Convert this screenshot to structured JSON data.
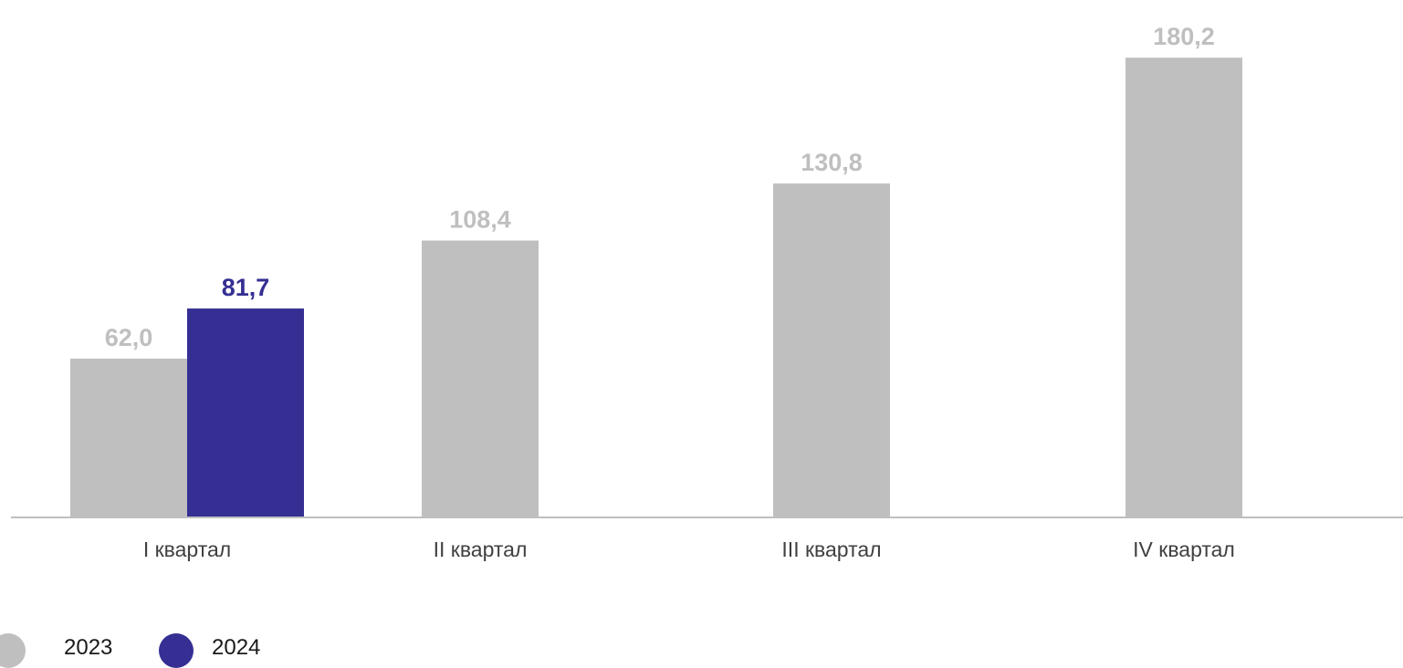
{
  "chart_data": {
    "type": "bar",
    "categories": [
      "I квартал",
      "II квартал",
      "III квартал",
      "IV квартал"
    ],
    "series": [
      {
        "name": "2023",
        "values": [
          62.0,
          108.4,
          130.8,
          180.2
        ],
        "labels": [
          "62,0",
          "108,4",
          "130,8",
          "180,2"
        ],
        "color": "#bfbfbf"
      },
      {
        "name": "2024",
        "values": [
          81.7,
          null,
          null,
          null
        ],
        "labels": [
          "81,7",
          null,
          null,
          null
        ],
        "color": "#352f93"
      }
    ],
    "title": "",
    "xlabel": "",
    "ylabel": "",
    "ylim": [
      0,
      200
    ],
    "grid": false,
    "legend_position": "bottom-left"
  },
  "legend": {
    "items": [
      {
        "label": "2023",
        "color": "#bfbfbf"
      },
      {
        "label": "2024",
        "color": "#352f93"
      }
    ]
  },
  "colors": {
    "axis": "#bfbfbf",
    "category_text": "#404040",
    "label_2023": "#bfbfbf",
    "label_2024": "#352f93"
  }
}
